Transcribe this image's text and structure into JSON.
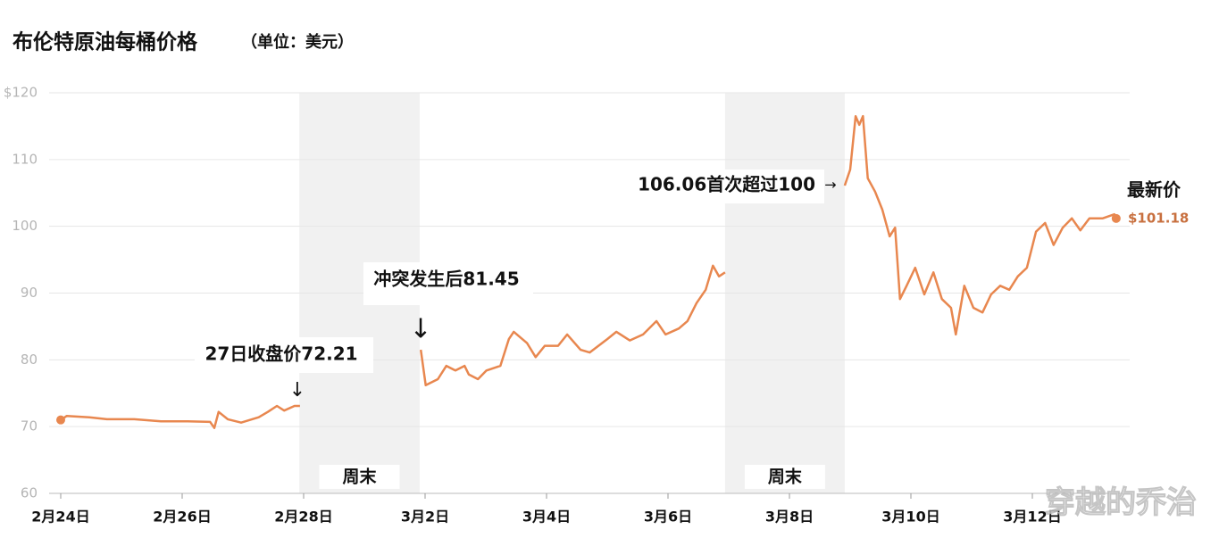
{
  "chart_data": {
    "type": "line",
    "title": "布伦特原油每桶价格",
    "subtitle": "（单位：美元）",
    "xlim": [
      -0.3,
      17.8
    ],
    "ylim": [
      60,
      120
    ],
    "yticks": [
      60,
      70,
      80,
      90,
      100,
      110,
      {
        "value": 120,
        "label": "$120"
      }
    ],
    "xticks": [
      {
        "value": 0,
        "label": "2月24日"
      },
      {
        "value": 2,
        "label": "2月26日"
      },
      {
        "value": 4,
        "label": "2月28日"
      },
      {
        "value": 6,
        "label": "3月2日"
      },
      {
        "value": 8,
        "label": "3月4日"
      },
      {
        "value": 10,
        "label": "3月6日"
      },
      {
        "value": 12,
        "label": "3月8日"
      },
      {
        "value": 14,
        "label": "3月10日"
      },
      {
        "value": 16,
        "label": "3月12日"
      }
    ],
    "grid": true,
    "shaded_regions": [
      {
        "label": "周末",
        "xlim": [
          3.93,
          5.91
        ]
      },
      {
        "label": "周末",
        "xlim": [
          10.94,
          12.91
        ]
      }
    ],
    "series": [
      {
        "name": "布伦特原油",
        "color": "#e8874f",
        "x": [
          0,
          0.1,
          0.47,
          0.76,
          1.21,
          1.65,
          2.09,
          2.46,
          2.53,
          2.6,
          2.75,
          2.97,
          3.26,
          3.41,
          3.56,
          3.68,
          3.85,
          3.94,
          4.5,
          5.93,
          6.01,
          6.21,
          6.35,
          6.5,
          6.65,
          6.72,
          6.87,
          7.01,
          7.24,
          7.38,
          7.46,
          7.68,
          7.82,
          7.97,
          8.19,
          8.34,
          8.56,
          8.71,
          9.0,
          9.15,
          9.37,
          9.59,
          9.81,
          9.96,
          10.18,
          10.32,
          10.47,
          10.62,
          10.74,
          10.84,
          10.94,
          11.5,
          12.91,
          13.0,
          13.09,
          13.15,
          13.21,
          13.29,
          13.41,
          13.53,
          13.65,
          13.74,
          13.82,
          13.93,
          14.07,
          14.22,
          14.37,
          14.51,
          14.66,
          14.74,
          14.88,
          15.03,
          15.18,
          15.32,
          15.47,
          15.62,
          15.76,
          15.91,
          16.06,
          16.21,
          16.35,
          16.5,
          16.65,
          16.79,
          16.94,
          17.16,
          17.35,
          17.38
        ],
        "values": [
          71.0,
          71.6,
          71.4,
          71.1,
          71.1,
          70.8,
          70.8,
          70.7,
          69.8,
          72.2,
          71.1,
          70.6,
          71.4,
          72.2,
          73.1,
          72.4,
          73.1,
          73.1,
          null,
          81.5,
          76.2,
          77.1,
          79.1,
          78.4,
          79.1,
          77.8,
          77.1,
          78.4,
          79.1,
          83.1,
          84.2,
          82.5,
          80.4,
          82.1,
          82.1,
          83.8,
          81.5,
          81.1,
          83.1,
          84.2,
          82.9,
          83.8,
          85.8,
          83.8,
          84.7,
          85.8,
          88.5,
          90.5,
          94.1,
          92.5,
          93.1,
          null,
          106.1,
          108.5,
          116.5,
          115.2,
          116.5,
          107.2,
          105.2,
          102.5,
          98.5,
          99.8,
          89.1,
          91.1,
          93.8,
          89.8,
          93.1,
          89.1,
          87.8,
          83.8,
          91.1,
          87.8,
          87.1,
          89.8,
          91.1,
          90.5,
          92.5,
          93.8,
          99.2,
          100.5,
          97.2,
          99.8,
          101.2,
          99.4,
          101.2,
          101.2,
          101.8,
          101.18
        ]
      }
    ],
    "annotations": [
      "27日收盘价72.21",
      "冲突发生后81.45",
      "106.06首次超过100"
    ],
    "latest": {
      "title": "最新价",
      "label": "$101.18"
    },
    "watermark": "穿越的乔治"
  }
}
